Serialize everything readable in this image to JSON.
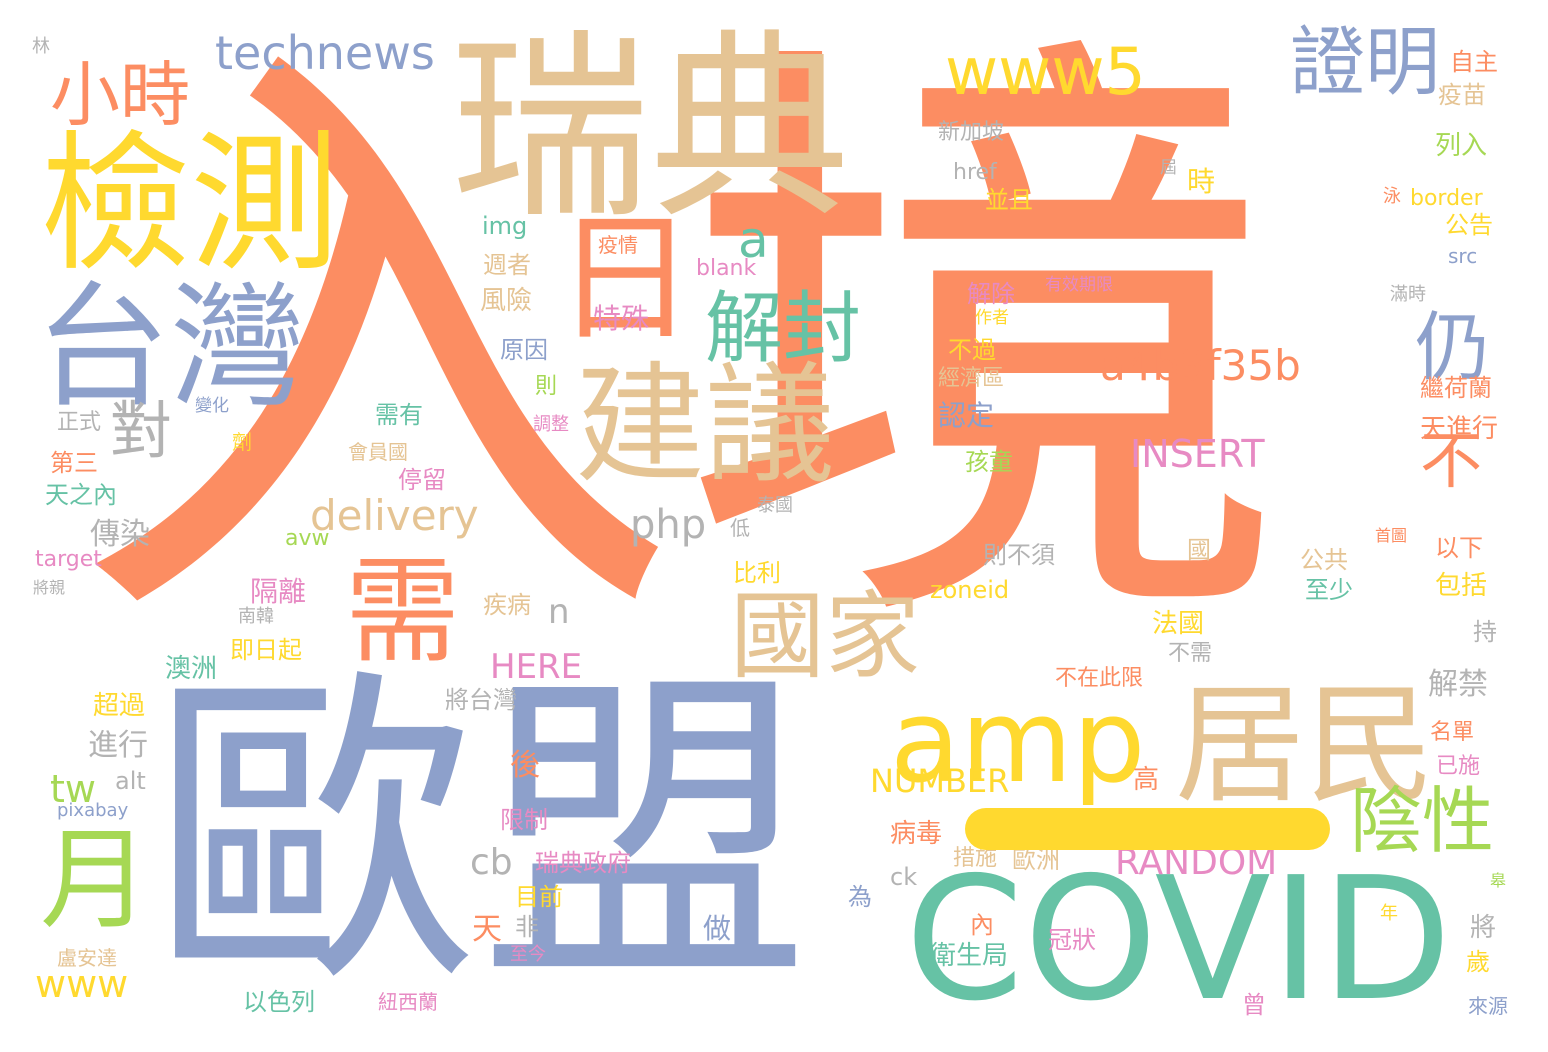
{
  "palette": {
    "orange": "#FC8D62",
    "blue": "#8DA0CB",
    "tan": "#E5C494",
    "yellow": "#FFD92F",
    "teal": "#66C2A5",
    "green": "#A6D854",
    "pink": "#E78AC3",
    "gray": "#B3B3B3"
  },
  "words": [
    "入境",
    "歐盟",
    "瑞典",
    "檢測",
    "台灣",
    "COVID",
    "建議",
    "需",
    "居民",
    "amp",
    "國家",
    "月",
    "解封",
    "陰性",
    "證明",
    "仍",
    "不",
    "小時",
    "technews",
    "www5",
    "a4b3f35b",
    "INSERT",
    "delivery",
    "對",
    "a",
    "php",
    "tw",
    "www",
    "RANDOM",
    "NUMBER",
    "HERE",
    "cb",
    "n",
    "日",
    "疫情",
    "特殊",
    "林",
    "自主",
    "疫苗",
    "新加坡",
    "href",
    "時",
    "並且",
    "列入",
    "border",
    "公告",
    "img",
    "週者",
    "blank",
    "src",
    "風險",
    "解除",
    "有效期限",
    "滿時",
    "作者",
    "原因",
    "不過",
    "經濟區",
    "則",
    "繼荷蘭",
    "認定",
    "正式",
    "變化",
    "需有",
    "調整",
    "天進行",
    "第三",
    "劑",
    "會員國",
    "停留",
    "孩童",
    "天之內",
    "傳染",
    "泰國",
    "低",
    "avw",
    "target",
    "將親",
    "首圖",
    "國",
    "則不須",
    "以下",
    "隔離",
    "比利",
    "疾病",
    "公共",
    "至少",
    "包括",
    "南韓",
    "zoneid",
    "法國",
    "持",
    "即日起",
    "澳洲",
    "不需",
    "超過",
    "不在此限",
    "將台灣",
    "解禁",
    "進行",
    "名單",
    "後",
    "alt",
    "已施",
    "高",
    "pixabay",
    "限制",
    "病毒",
    "措施",
    "歐洲",
    "瑞典政府",
    "目前",
    "ck",
    "為",
    "非",
    "天",
    "內",
    "做",
    "冠狀",
    "衛生局",
    "將",
    "歲",
    "盧安達",
    "至今",
    "以色列",
    "紐西蘭",
    "曾",
    "來源",
    "年",
    "屆",
    "泳",
    "皋"
  ]
}
